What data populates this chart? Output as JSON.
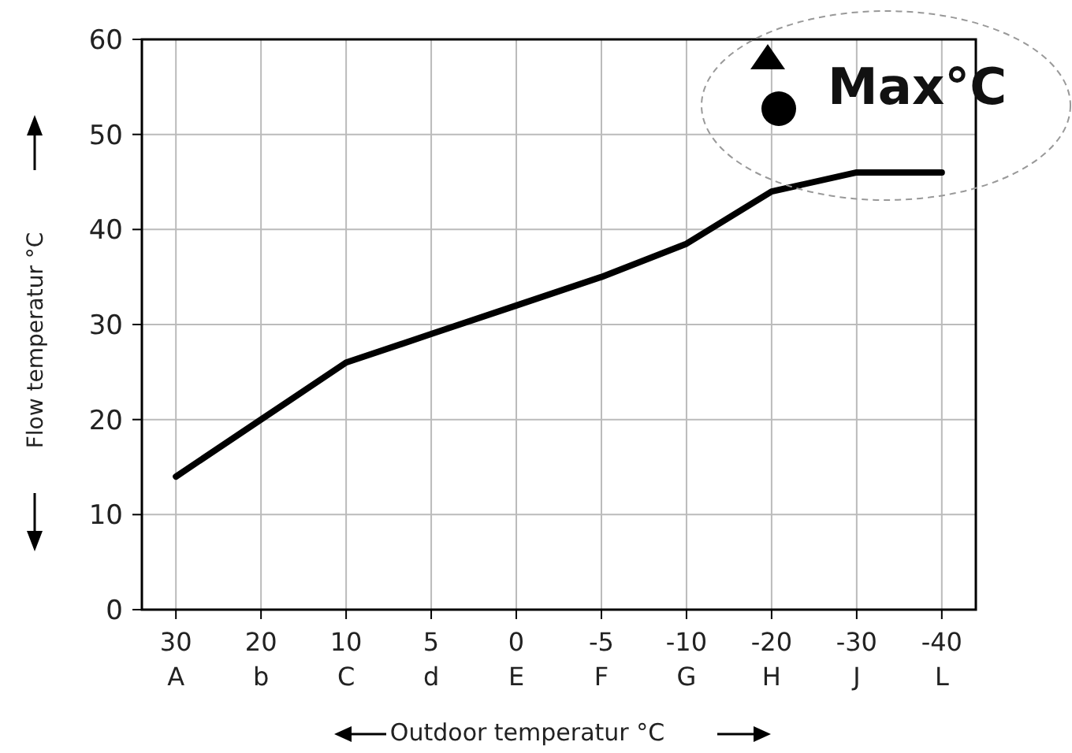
{
  "chart_data": {
    "type": "line",
    "xlabel": "Outdoor temperatur °C",
    "ylabel": "Flow temperatur °C",
    "categories": [
      "30\nA",
      "20\nb",
      "10\nC",
      "5\nd",
      "0\nE",
      "-5\nF",
      "-10\nG",
      "-20\nH",
      "-30\nJ",
      "-40\nL"
    ],
    "series": [
      {
        "color": "#000000",
        "values": [
          14,
          20,
          26,
          29,
          32,
          35,
          38.5,
          44,
          46,
          46
        ]
      }
    ],
    "ylim": [
      0,
      60
    ],
    "yticks": [
      0,
      10,
      20,
      30,
      40,
      50,
      60
    ],
    "grid": true,
    "marker": "none",
    "line_style": "solid",
    "annotations": [
      "Max°C"
    ]
  }
}
